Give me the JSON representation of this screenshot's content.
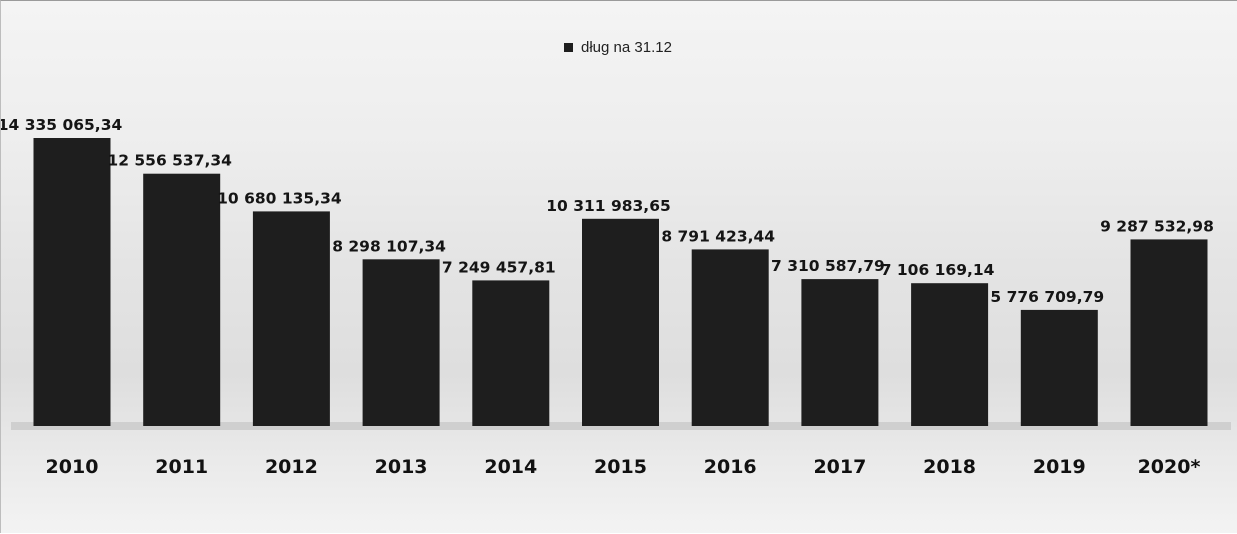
{
  "chart_data": {
    "type": "bar",
    "title": "",
    "xlabel": "",
    "ylabel": "",
    "ylim": [
      0,
      14335065.34
    ],
    "grid": false,
    "legend_position": "top-center",
    "categories": [
      "2010",
      "2011",
      "2012",
      "2013",
      "2014",
      "2015",
      "2016",
      "2017",
      "2018",
      "2019",
      "2020*"
    ],
    "series": [
      {
        "name": "dług na 31.12",
        "color": "#1e1e1e",
        "values": [
          14335065.34,
          12556537.34,
          10680135.34,
          8298107.34,
          7249457.81,
          10311983.65,
          8791423.44,
          7310587.79,
          7106169.14,
          5776709.79,
          9287532.98
        ],
        "labels": [
          "14 335 065,34",
          "12 556 537,34",
          "10 680 135,34",
          "8 298 107,34",
          "7 249 457,81",
          "10 311 983,65",
          "8 791 423,44",
          "7 310 587,79",
          "7 106 169,14",
          "5 776 709,79",
          "9 287 532,98"
        ]
      }
    ]
  }
}
